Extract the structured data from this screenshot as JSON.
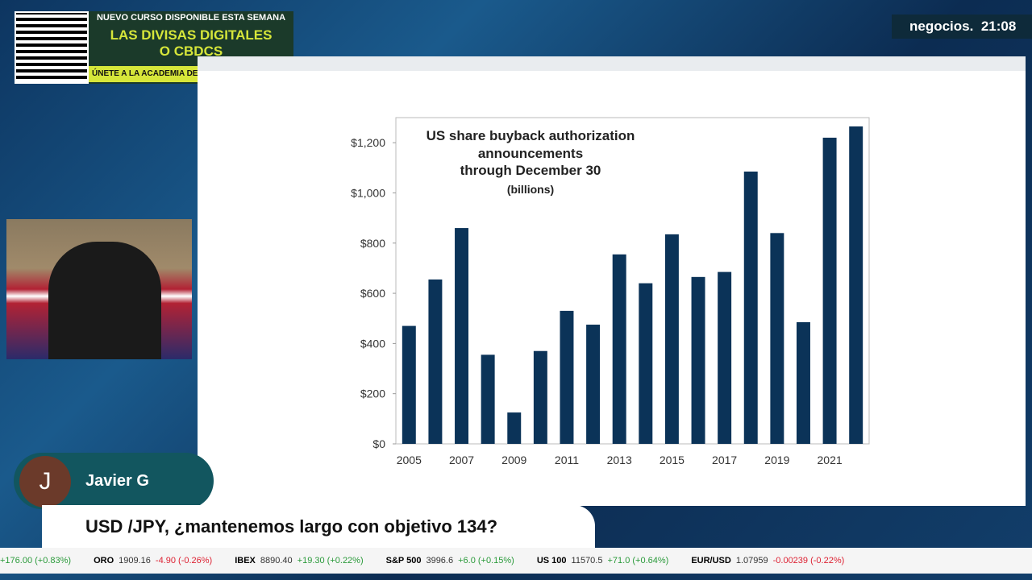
{
  "chart_data": {
    "type": "bar",
    "title_lines": [
      "US share buyback authorization",
      "announcements",
      "through December 30"
    ],
    "subtitle": "(billions)",
    "categories": [
      "2005",
      null,
      "2007",
      null,
      "2009",
      null,
      "2011",
      null,
      "2013",
      null,
      "2015",
      null,
      "2017",
      null,
      "2019",
      null,
      "2021",
      null
    ],
    "values": [
      470,
      655,
      860,
      355,
      125,
      370,
      530,
      475,
      755,
      640,
      835,
      665,
      685,
      1085,
      840,
      485,
      1220,
      1265
    ],
    "color": "#0b3358",
    "ylim": [
      0,
      1300
    ],
    "yticks": [
      {
        "value": 0,
        "label": "$0"
      },
      {
        "value": 200,
        "label": "$200"
      },
      {
        "value": 400,
        "label": "$400"
      },
      {
        "value": 600,
        "label": "$600"
      },
      {
        "value": 800,
        "label": "$800"
      },
      {
        "value": 1000,
        "label": "$1,000"
      },
      {
        "value": 1200,
        "label": "$1,200"
      }
    ]
  },
  "promo": {
    "line1": "NUEVO CURSO DISPONIBLE ESTA SEMANA",
    "line2": "LAS DIVISAS DIGITALES",
    "line3": "O CBDCS",
    "line4": "ÚNETE A LA ACADEMIA DE NEGOCIOS TV"
  },
  "brand": {
    "name": "negocios.",
    "time": "21:08"
  },
  "guest": {
    "initial": "J",
    "name": "Javier G"
  },
  "question": "USD /JPY, ¿mantenemos largo con objetivo 134?",
  "ticker": [
    {
      "name": "",
      "price": "",
      "change": "+176.00 (+0.83%)"
    },
    {
      "name": "ORO",
      "price": "1909.16",
      "change": "-4.90 (-0.26%)"
    },
    {
      "name": "IBEX",
      "price": "8890.40",
      "change": "+19.30 (+0.22%)"
    },
    {
      "name": "S&P 500",
      "price": "3996.6",
      "change": "+6.0 (+0.15%)"
    },
    {
      "name": "US 100",
      "price": "11570.5",
      "change": "+71.0 (+0.64%)"
    },
    {
      "name": "EUR/USD",
      "price": "1.07959",
      "change": "-0.00239 (-0.22%)"
    }
  ]
}
